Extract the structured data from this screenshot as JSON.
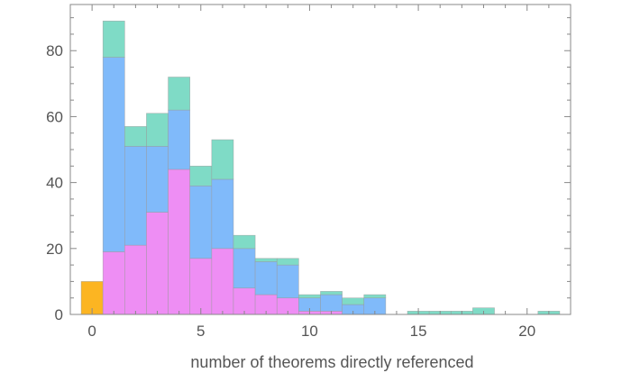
{
  "chart_data": {
    "type": "bar",
    "stacking": "stacked",
    "title": "",
    "xlabel": "number of theorems directly referenced",
    "ylabel": "",
    "xlim": [
      -1,
      22
    ],
    "ylim": [
      0,
      94
    ],
    "xticks": [
      0,
      5,
      10,
      15,
      20
    ],
    "yticks": [
      0,
      20,
      40,
      60,
      80
    ],
    "x": [
      0,
      1,
      2,
      3,
      4,
      5,
      6,
      7,
      8,
      9,
      10,
      11,
      12,
      13,
      14,
      15,
      16,
      17,
      18,
      19,
      20,
      21
    ],
    "series": [
      {
        "color": "#fcb522",
        "values": [
          10,
          0,
          0,
          0,
          0,
          0,
          0,
          0,
          0,
          0,
          0,
          0,
          0,
          0,
          0,
          0,
          0,
          0,
          0,
          0,
          0,
          0
        ]
      },
      {
        "color": "#ee8ef4",
        "values": [
          0,
          19,
          21,
          31,
          44,
          17,
          20,
          8,
          6,
          5,
          1,
          1,
          0,
          0,
          0,
          0,
          0,
          0,
          0,
          0,
          0,
          0
        ]
      },
      {
        "color": "#80bafa",
        "values": [
          0,
          59,
          30,
          20,
          18,
          22,
          21,
          12,
          10,
          10,
          4,
          5,
          3,
          5,
          0,
          0,
          0,
          0,
          0,
          0,
          0,
          0
        ]
      },
      {
        "color": "#7fdbc6",
        "values": [
          0,
          11,
          6,
          10,
          10,
          6,
          12,
          4,
          1,
          2,
          1,
          1,
          2,
          1,
          0,
          1,
          1,
          1,
          2,
          0,
          0,
          1
        ]
      }
    ],
    "grid": false,
    "legend": "none"
  }
}
